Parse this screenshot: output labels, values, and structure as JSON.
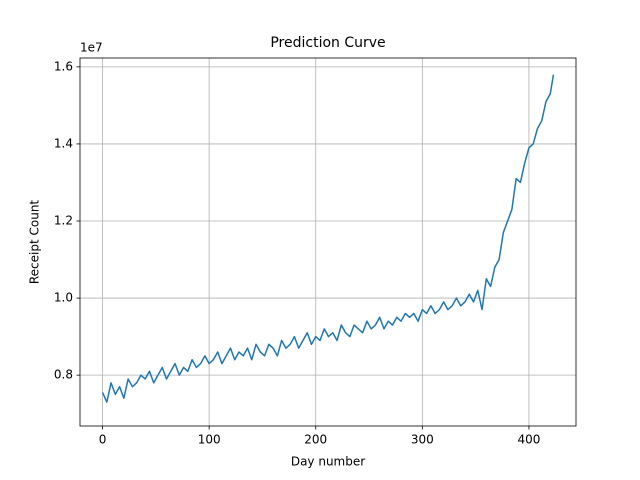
{
  "chart_data": {
    "type": "line",
    "title": "Prediction Curve",
    "x_label": "Day number",
    "y_label": "Receipt Count",
    "y_offset_label": "1e7",
    "x": [
      0,
      4,
      8,
      12,
      16,
      20,
      24,
      28,
      32,
      36,
      40,
      44,
      48,
      52,
      56,
      60,
      64,
      68,
      72,
      76,
      80,
      84,
      88,
      92,
      96,
      100,
      104,
      108,
      112,
      116,
      120,
      124,
      128,
      132,
      136,
      140,
      144,
      148,
      152,
      156,
      160,
      164,
      168,
      172,
      176,
      180,
      184,
      188,
      192,
      196,
      200,
      204,
      208,
      212,
      216,
      220,
      224,
      228,
      232,
      236,
      240,
      244,
      248,
      252,
      256,
      260,
      264,
      268,
      272,
      276,
      280,
      284,
      288,
      292,
      296,
      300,
      304,
      308,
      312,
      316,
      320,
      324,
      328,
      332,
      336,
      340,
      344,
      348,
      352,
      356,
      360,
      364,
      368,
      372,
      376,
      380,
      384,
      388,
      392,
      396,
      400,
      404,
      408,
      412,
      416,
      420,
      423
    ],
    "series": [
      {
        "color": "#1f77b4",
        "values": [
          0.755,
          0.73,
          0.78,
          0.75,
          0.77,
          0.74,
          0.79,
          0.77,
          0.78,
          0.8,
          0.79,
          0.81,
          0.78,
          0.8,
          0.82,
          0.79,
          0.81,
          0.83,
          0.8,
          0.82,
          0.81,
          0.84,
          0.82,
          0.83,
          0.85,
          0.83,
          0.84,
          0.86,
          0.83,
          0.85,
          0.87,
          0.84,
          0.86,
          0.85,
          0.87,
          0.84,
          0.88,
          0.86,
          0.85,
          0.88,
          0.87,
          0.85,
          0.89,
          0.87,
          0.88,
          0.9,
          0.87,
          0.89,
          0.91,
          0.88,
          0.9,
          0.89,
          0.92,
          0.9,
          0.91,
          0.89,
          0.93,
          0.91,
          0.9,
          0.93,
          0.92,
          0.91,
          0.94,
          0.92,
          0.93,
          0.95,
          0.92,
          0.94,
          0.93,
          0.95,
          0.94,
          0.96,
          0.95,
          0.96,
          0.94,
          0.97,
          0.96,
          0.98,
          0.96,
          0.97,
          0.99,
          0.97,
          0.98,
          1.0,
          0.98,
          0.99,
          1.01,
          0.99,
          1.02,
          0.97,
          1.05,
          1.03,
          1.08,
          1.1,
          1.17,
          1.2,
          1.23,
          1.31,
          1.3,
          1.35,
          1.39,
          1.4,
          1.44,
          1.46,
          1.51,
          1.53,
          1.58
        ]
      }
    ],
    "xlim": [
      -21.15,
      444.15
    ],
    "xticks": [
      0,
      100,
      200,
      300,
      400
    ],
    "ylim": [
      0.668,
      1.623
    ],
    "yticks": [
      0.8,
      {
        "value": 1,
        "label": "1.0"
      },
      1.2,
      1.4,
      1.6
    ],
    "grid": true
  }
}
